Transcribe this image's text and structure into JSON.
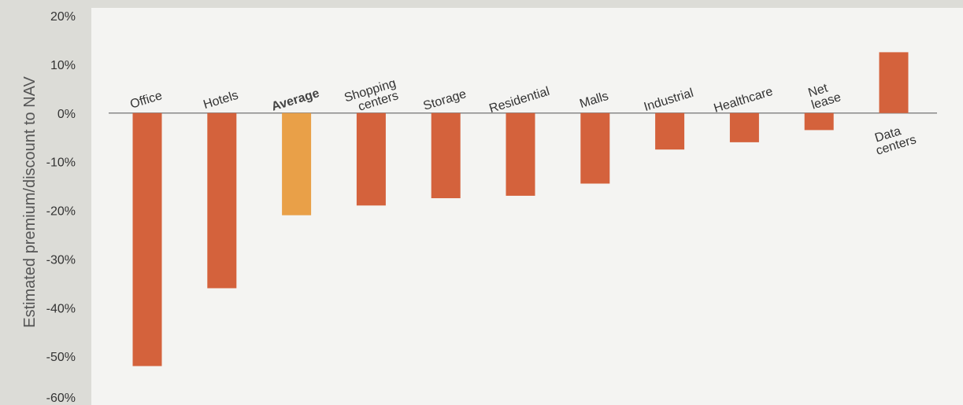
{
  "chart_data": {
    "type": "bar",
    "title": "",
    "xlabel": "",
    "ylabel": "Estimated premium/discount to NAV",
    "ylim": [
      -60,
      20
    ],
    "yticks": [
      20,
      10,
      0,
      -10,
      -20,
      -30,
      -40,
      -50,
      -60
    ],
    "ytick_labels": [
      "20%",
      "10%",
      "0%",
      "-10%",
      "-20%",
      "-30%",
      "-40%",
      "-50%",
      "-60%"
    ],
    "grid": false,
    "categories": [
      {
        "lines": [
          "Office"
        ],
        "bold": false
      },
      {
        "lines": [
          "Hotels"
        ],
        "bold": false
      },
      {
        "lines": [
          "Average"
        ],
        "bold": true
      },
      {
        "lines": [
          "Shopping",
          "centers"
        ],
        "bold": false
      },
      {
        "lines": [
          "Storage"
        ],
        "bold": false
      },
      {
        "lines": [
          "Residential"
        ],
        "bold": false
      },
      {
        "lines": [
          "Malls"
        ],
        "bold": false
      },
      {
        "lines": [
          "Industrial"
        ],
        "bold": false
      },
      {
        "lines": [
          "Healthcare"
        ],
        "bold": false
      },
      {
        "lines": [
          "Net",
          "lease"
        ],
        "bold": false
      },
      {
        "lines": [
          "Data",
          "centers"
        ],
        "bold": false
      }
    ],
    "values": [
      -52,
      -36,
      -21,
      -19,
      -17.5,
      -17,
      -14.5,
      -7.5,
      -6,
      -3.5,
      12.5
    ],
    "colors": {
      "bar": "#d4623c",
      "highlight": "#e9a048",
      "plot_bg": "#f4f4f2",
      "axis": "#888888",
      "page_bg": "#dcdcd7"
    },
    "highlight_index": 2
  }
}
